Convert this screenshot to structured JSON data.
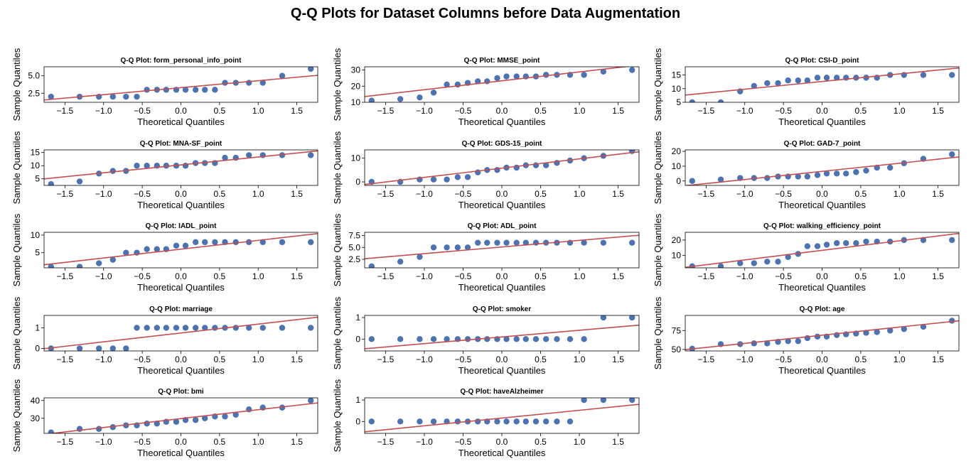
{
  "figure": {
    "title": "Q-Q Plots for Dataset Columns before Data Augmentation",
    "x_label": "Theoretical Quantiles",
    "y_label": "Sample Quantiles",
    "colors": {
      "points": "#4c72b0",
      "line": "#c44e52",
      "axes": "#000000"
    }
  },
  "chart_data": [
    {
      "type": "scatter",
      "title": "Q-Q Plot: form_personal_info_point",
      "xlabel": "Theoretical Quantiles",
      "ylabel": "Sample Quantiles",
      "xlim": [
        -1.77,
        1.77
      ],
      "ylim": [
        1.2,
        6.3
      ],
      "x_ticks": [
        -1.5,
        -1.0,
        -0.5,
        0.0,
        0.5,
        1.0,
        1.5
      ],
      "y_ticks": [
        2.5,
        5.0
      ],
      "theoretical_quantiles": [
        -1.68,
        -1.31,
        -1.06,
        -0.88,
        -0.71,
        -0.57,
        -0.44,
        -0.31,
        -0.19,
        -0.06,
        0.06,
        0.19,
        0.31,
        0.44,
        0.57,
        0.71,
        0.88,
        1.06,
        1.31,
        1.68
      ],
      "sample_quantiles": [
        2,
        2,
        2,
        2,
        2,
        2,
        3,
        3,
        3,
        3,
        3,
        3,
        3,
        3,
        4,
        4,
        4,
        4,
        5,
        6
      ],
      "fit_line": {
        "slope": 1.0,
        "intercept": 3.3
      }
    },
    {
      "type": "scatter",
      "title": "Q-Q Plot: MMSE_point",
      "xlabel": "Theoretical Quantiles",
      "ylabel": "Sample Quantiles",
      "xlim": [
        -1.77,
        1.77
      ],
      "ylim": [
        10,
        32
      ],
      "x_ticks": [
        -1.5,
        -1.0,
        -0.5,
        0.0,
        0.5,
        1.0,
        1.5
      ],
      "y_ticks": [
        10,
        20,
        30
      ],
      "theoretical_quantiles": [
        -1.68,
        -1.31,
        -1.06,
        -0.88,
        -0.71,
        -0.57,
        -0.44,
        -0.31,
        -0.19,
        -0.06,
        0.06,
        0.19,
        0.31,
        0.44,
        0.57,
        0.71,
        0.88,
        1.06,
        1.31,
        1.68
      ],
      "sample_quantiles": [
        11,
        12,
        13,
        16,
        21,
        21,
        22,
        23,
        23,
        25,
        26,
        26,
        26,
        26,
        27,
        27,
        27,
        27,
        29,
        30
      ],
      "fit_line": {
        "slope": 5.5,
        "intercept": 23.3
      }
    },
    {
      "type": "scatter",
      "title": "Q-Q Plot: CSI-D_point",
      "xlabel": "Theoretical Quantiles",
      "ylabel": "Sample Quantiles",
      "xlim": [
        -1.77,
        1.77
      ],
      "ylim": [
        5,
        18
      ],
      "x_ticks": [
        -1.5,
        -1.0,
        -0.5,
        0.0,
        0.5,
        1.0,
        1.5
      ],
      "y_ticks": [
        5,
        10,
        15
      ],
      "theoretical_quantiles": [
        -1.68,
        -1.31,
        -1.06,
        -0.88,
        -0.71,
        -0.57,
        -0.44,
        -0.31,
        -0.19,
        -0.06,
        0.06,
        0.19,
        0.31,
        0.44,
        0.57,
        0.71,
        0.88,
        1.06,
        1.31,
        1.68
      ],
      "sample_quantiles": [
        5,
        5,
        9,
        11,
        12,
        12,
        13,
        13,
        13,
        14,
        14,
        14,
        14,
        14,
        14,
        14,
        15,
        15,
        15,
        15
      ],
      "fit_line": {
        "slope": 2.8,
        "intercept": 12.6
      }
    },
    {
      "type": "scatter",
      "title": "Q-Q Plot: MNA-SF_point",
      "xlabel": "Theoretical Quantiles",
      "ylabel": "Sample Quantiles",
      "xlim": [
        -1.77,
        1.77
      ],
      "ylim": [
        2.5,
        16
      ],
      "x_ticks": [
        -1.5,
        -1.0,
        -0.5,
        0.0,
        0.5,
        1.0,
        1.5
      ],
      "y_ticks": [
        5,
        10,
        15
      ],
      "theoretical_quantiles": [
        -1.68,
        -1.31,
        -1.06,
        -0.88,
        -0.71,
        -0.57,
        -0.44,
        -0.31,
        -0.19,
        -0.06,
        0.06,
        0.19,
        0.31,
        0.44,
        0.57,
        0.71,
        0.88,
        1.06,
        1.31,
        1.68
      ],
      "sample_quantiles": [
        3,
        4,
        7,
        8,
        8,
        10,
        10,
        10,
        10,
        10,
        10,
        11,
        11,
        11,
        13,
        13,
        14,
        14,
        14,
        14
      ],
      "fit_line": {
        "slope": 3.0,
        "intercept": 10.3
      }
    },
    {
      "type": "scatter",
      "title": "Q-Q Plot: GDS-15_point",
      "xlabel": "Theoretical Quantiles",
      "ylabel": "Sample Quantiles",
      "xlim": [
        -1.77,
        1.77
      ],
      "ylim": [
        -1.5,
        13.5
      ],
      "x_ticks": [
        -1.5,
        -1.0,
        -0.5,
        0.0,
        0.5,
        1.0,
        1.5
      ],
      "y_ticks": [
        0,
        10
      ],
      "theoretical_quantiles": [
        -1.68,
        -1.31,
        -1.06,
        -0.88,
        -0.71,
        -0.57,
        -0.44,
        -0.31,
        -0.19,
        -0.06,
        0.06,
        0.19,
        0.31,
        0.44,
        0.57,
        0.71,
        0.88,
        1.06,
        1.31,
        1.68
      ],
      "sample_quantiles": [
        0,
        0,
        1,
        1,
        1,
        2,
        2,
        4,
        5,
        5,
        6,
        6,
        7,
        7,
        7,
        8,
        9,
        10,
        11,
        13
      ],
      "fit_line": {
        "slope": 3.9,
        "intercept": 5.8
      }
    },
    {
      "type": "scatter",
      "title": "Q-Q Plot: GAD-7_point",
      "xlabel": "Theoretical Quantiles",
      "ylabel": "Sample Quantiles",
      "xlim": [
        -1.77,
        1.77
      ],
      "ylim": [
        -3,
        21
      ],
      "x_ticks": [
        -1.5,
        -1.0,
        -0.5,
        0.0,
        0.5,
        1.0,
        1.5
      ],
      "y_ticks": [
        0,
        10,
        20
      ],
      "theoretical_quantiles": [
        -1.68,
        -1.31,
        -1.06,
        -0.88,
        -0.71,
        -0.57,
        -0.44,
        -0.31,
        -0.19,
        -0.06,
        0.06,
        0.19,
        0.31,
        0.44,
        0.57,
        0.71,
        0.88,
        1.06,
        1.31,
        1.68
      ],
      "sample_quantiles": [
        0,
        1,
        2,
        2,
        2,
        3,
        3,
        3,
        3,
        4,
        5,
        5,
        5,
        6,
        7,
        9,
        9,
        12,
        15,
        18
      ],
      "fit_line": {
        "slope": 5.5,
        "intercept": 6.5
      }
    },
    {
      "type": "scatter",
      "title": "Q-Q Plot: IADL_point",
      "xlabel": "Theoretical Quantiles",
      "ylabel": "Sample Quantiles",
      "xlim": [
        -1.77,
        1.77
      ],
      "ylim": [
        0.7,
        10.8
      ],
      "x_ticks": [
        -1.5,
        -1.0,
        -0.5,
        0.0,
        0.5,
        1.0,
        1.5
      ],
      "y_ticks": [
        5,
        10
      ],
      "theoretical_quantiles": [
        -1.68,
        -1.31,
        -1.06,
        -0.88,
        -0.71,
        -0.57,
        -0.44,
        -0.31,
        -0.19,
        -0.06,
        0.06,
        0.19,
        0.31,
        0.44,
        0.57,
        0.71,
        0.88,
        1.06,
        1.31,
        1.68
      ],
      "sample_quantiles": [
        1,
        1,
        2,
        3,
        5,
        5,
        6,
        6,
        6,
        7,
        7,
        8,
        8,
        8,
        8,
        8,
        8,
        8,
        8,
        8
      ],
      "fit_line": {
        "slope": 2.5,
        "intercept": 6.0
      }
    },
    {
      "type": "scatter",
      "title": "Q-Q Plot: ADL_point",
      "xlabel": "Theoretical Quantiles",
      "ylabel": "Sample Quantiles",
      "xlim": [
        -1.77,
        1.77
      ],
      "ylim": [
        0.7,
        8.2
      ],
      "x_ticks": [
        -1.5,
        -1.0,
        -0.5,
        0.0,
        0.5,
        1.0,
        1.5
      ],
      "y_ticks": [
        2.5,
        5.0,
        7.5
      ],
      "theoretical_quantiles": [
        -1.68,
        -1.31,
        -1.06,
        -0.88,
        -0.71,
        -0.57,
        -0.44,
        -0.31,
        -0.19,
        -0.06,
        0.06,
        0.19,
        0.31,
        0.44,
        0.57,
        0.71,
        0.88,
        1.06,
        1.31,
        1.68
      ],
      "sample_quantiles": [
        1,
        2,
        3,
        5,
        5,
        5,
        5,
        6,
        6,
        6,
        6,
        6,
        6,
        6,
        6,
        6,
        6,
        6,
        6,
        6
      ],
      "fit_line": {
        "slope": 1.4,
        "intercept": 5.1
      }
    },
    {
      "type": "scatter",
      "title": "Q-Q Plot: walking_efficiency_point",
      "xlabel": "Theoretical Quantiles",
      "ylabel": "Sample Quantiles",
      "xlim": [
        -1.77,
        1.77
      ],
      "ylim": [
        2,
        25
      ],
      "x_ticks": [
        -1.5,
        -1.0,
        -0.5,
        0.0,
        0.5,
        1.0,
        1.5
      ],
      "y_ticks": [
        10,
        20
      ],
      "theoretical_quantiles": [
        -1.68,
        -1.31,
        -1.06,
        -0.88,
        -0.71,
        -0.57,
        -0.44,
        -0.31,
        -0.19,
        -0.06,
        0.06,
        0.19,
        0.31,
        0.44,
        0.57,
        0.71,
        0.88,
        1.06,
        1.31,
        1.68
      ],
      "sample_quantiles": [
        3,
        3,
        5,
        5,
        6,
        6,
        9,
        11,
        16,
        16,
        17,
        18,
        18,
        18,
        19,
        19,
        19,
        20,
        20,
        20
      ],
      "fit_line": {
        "slope": 6.2,
        "intercept": 13.3
      }
    },
    {
      "type": "scatter",
      "title": "Q-Q Plot: marriage",
      "xlabel": "Theoretical Quantiles",
      "ylabel": "Sample Quantiles",
      "xlim": [
        -1.77,
        1.77
      ],
      "ylim": [
        -0.12,
        1.6
      ],
      "x_ticks": [
        -1.5,
        -1.0,
        -0.5,
        0.0,
        0.5,
        1.0,
        1.5
      ],
      "y_ticks": [
        0,
        1
      ],
      "theoretical_quantiles": [
        -1.68,
        -1.31,
        -1.06,
        -0.88,
        -0.71,
        -0.57,
        -0.44,
        -0.31,
        -0.19,
        -0.06,
        0.06,
        0.19,
        0.31,
        0.44,
        0.57,
        0.71,
        0.88,
        1.06,
        1.31,
        1.68
      ],
      "sample_quantiles": [
        0,
        0,
        0,
        0,
        0,
        1,
        1,
        1,
        1,
        1,
        1,
        1,
        1,
        1,
        1,
        1,
        1,
        1,
        1,
        1
      ],
      "fit_line": {
        "slope": 0.43,
        "intercept": 0.75
      }
    },
    {
      "type": "scatter",
      "title": "Q-Q Plot: smoker",
      "xlabel": "Theoretical Quantiles",
      "ylabel": "Sample Quantiles",
      "xlim": [
        -1.77,
        1.77
      ],
      "ylim": [
        -0.55,
        1.1
      ],
      "x_ticks": [
        -1.5,
        -1.0,
        -0.5,
        0.0,
        0.5,
        1.0,
        1.5
      ],
      "y_ticks": [
        0,
        1
      ],
      "theoretical_quantiles": [
        -1.68,
        -1.31,
        -1.06,
        -0.88,
        -0.71,
        -0.57,
        -0.44,
        -0.31,
        -0.19,
        -0.06,
        0.06,
        0.19,
        0.31,
        0.44,
        0.57,
        0.71,
        0.88,
        1.06,
        1.31,
        1.68
      ],
      "sample_quantiles": [
        0,
        0,
        0,
        0,
        0,
        0,
        0,
        0,
        0,
        0,
        0,
        0,
        0,
        0,
        0,
        0,
        0,
        0,
        1,
        1
      ],
      "fit_line": {
        "slope": 0.31,
        "intercept": 0.1
      }
    },
    {
      "type": "scatter",
      "title": "Q-Q Plot: age",
      "xlabel": "Theoretical Quantiles",
      "ylabel": "Sample Quantiles",
      "xlim": [
        -1.77,
        1.77
      ],
      "ylim": [
        48,
        95
      ],
      "x_ticks": [
        -1.5,
        -1.0,
        -0.5,
        0.0,
        0.5,
        1.0,
        1.5
      ],
      "y_ticks": [
        50,
        75
      ],
      "theoretical_quantiles": [
        -1.68,
        -1.31,
        -1.06,
        -0.88,
        -0.71,
        -0.57,
        -0.44,
        -0.31,
        -0.19,
        -0.06,
        0.06,
        0.19,
        0.31,
        0.44,
        0.57,
        0.71,
        0.88,
        1.06,
        1.31,
        1.68
      ],
      "sample_quantiles": [
        51,
        57,
        57,
        58,
        58,
        60,
        61,
        61,
        65,
        67,
        67,
        69,
        70,
        71,
        72,
        73,
        75,
        77,
        80,
        88
      ],
      "fit_line": {
        "slope": 10.8,
        "intercept": 68.8
      }
    },
    {
      "type": "scatter",
      "title": "Q-Q Plot: bmi",
      "xlabel": "Theoretical Quantiles",
      "ylabel": "Sample Quantiles",
      "xlim": [
        -1.77,
        1.77
      ],
      "ylim": [
        21.5,
        41.5
      ],
      "x_ticks": [
        -1.5,
        -1.0,
        -0.5,
        0.0,
        0.5,
        1.0,
        1.5
      ],
      "y_ticks": [
        30,
        40
      ],
      "theoretical_quantiles": [
        -1.68,
        -1.31,
        -1.06,
        -0.88,
        -0.71,
        -0.57,
        -0.44,
        -0.31,
        -0.19,
        -0.06,
        0.06,
        0.19,
        0.31,
        0.44,
        0.57,
        0.71,
        0.88,
        1.06,
        1.31,
        1.68
      ],
      "sample_quantiles": [
        22,
        24,
        24,
        25,
        26,
        26,
        27,
        27,
        28,
        28,
        29,
        29,
        30,
        31,
        31,
        32,
        35,
        36,
        36,
        40
      ],
      "fit_line": {
        "slope": 5.0,
        "intercept": 29.8
      }
    },
    {
      "type": "scatter",
      "title": "Q-Q Plot: haveAlzheimer",
      "xlabel": "Theoretical Quantiles",
      "ylabel": "Sample Quantiles",
      "xlim": [
        -1.77,
        1.77
      ],
      "ylim": [
        -0.55,
        1.1
      ],
      "x_ticks": [
        -1.5,
        -1.0,
        -0.5,
        0.0,
        0.5,
        1.0,
        1.5
      ],
      "y_ticks": [
        0,
        1
      ],
      "theoretical_quantiles": [
        -1.68,
        -1.31,
        -1.06,
        -0.88,
        -0.71,
        -0.57,
        -0.44,
        -0.31,
        -0.19,
        -0.06,
        0.06,
        0.19,
        0.31,
        0.44,
        0.57,
        0.71,
        0.88,
        1.06,
        1.31,
        1.68
      ],
      "sample_quantiles": [
        0,
        0,
        0,
        0,
        0,
        0,
        0,
        0,
        0,
        0,
        0,
        0,
        0,
        0,
        0,
        0,
        0,
        1,
        1,
        1
      ],
      "fit_line": {
        "slope": 0.36,
        "intercept": 0.16
      }
    }
  ]
}
